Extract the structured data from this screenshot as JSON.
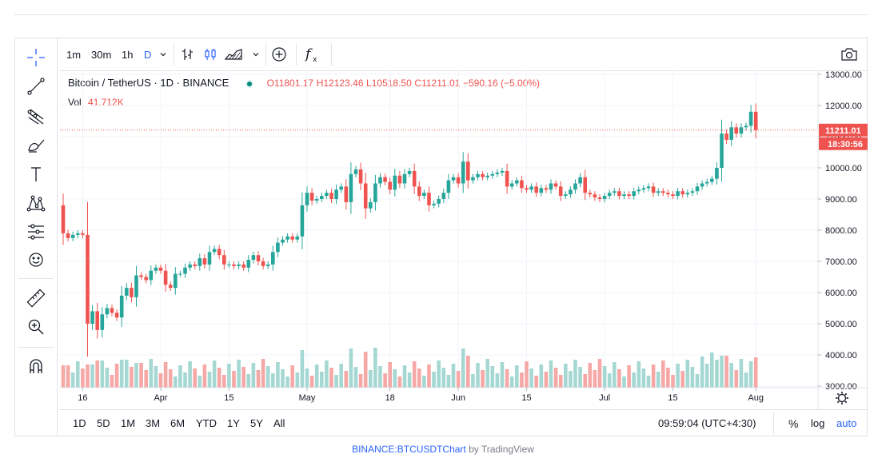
{
  "toolbar": {
    "intervals": [
      "1m",
      "30m",
      "1h",
      "D"
    ],
    "active_interval": "D"
  },
  "left_toolbar": {
    "tools": [
      "crosshair-icon",
      "trend-line-icon",
      "pitchfork-icon",
      "brush-icon",
      "text-icon",
      "pattern-icon",
      "prediction-icon",
      "emoji-icon",
      "ruler-icon",
      "zoom-in-icon",
      "magnet-icon"
    ]
  },
  "legend": {
    "symbol": "Bitcoin / TetherUS · 1D · BINANCE",
    "open": "O11801.17",
    "high": "H12123.46",
    "low": "L10518.50",
    "close": "C11211.01",
    "change": "−590.16 (−5.00%)",
    "vol_label": "Vol",
    "vol_value": "41.712K"
  },
  "price_labels": {
    "last_price": "11211.01",
    "countdown": "18:30:56"
  },
  "bottom_toolbar": {
    "ranges": [
      "1D",
      "5D",
      "1M",
      "3M",
      "6M",
      "YTD",
      "1Y",
      "5Y",
      "All"
    ],
    "time": "09:59:04 (UTC+4:30)",
    "percent": "%",
    "log": "log",
    "auto": "auto"
  },
  "footer": {
    "link": "BINANCE:BTCUSDT",
    "chart": "Chart",
    "by": " by TradingView"
  },
  "colors": {
    "up": "#26a69a",
    "down": "#ef5350",
    "vol_up": "#a6d8d3",
    "vol_down": "#f5a8a6",
    "accent": "#2962ff"
  },
  "chart_data": {
    "type": "candlestick",
    "symbol": "BTCUSDT",
    "ylim": [
      3000,
      13000
    ],
    "yticks": [
      "3000.00",
      "4000.00",
      "5000.00",
      "6000.00",
      "7000.00",
      "8000.00",
      "9000.00",
      "10000.00",
      "11000.00",
      "12000.00",
      "13000.00"
    ],
    "xticks": [
      {
        "label": "16",
        "day": 4
      },
      {
        "label": "Apr",
        "day": 20
      },
      {
        "label": "15",
        "day": 34
      },
      {
        "label": "May",
        "day": 50
      },
      {
        "label": "18",
        "day": 67
      },
      {
        "label": "Jun",
        "day": 81
      },
      {
        "label": "15",
        "day": 95
      },
      {
        "label": "Jul",
        "day": 111
      },
      {
        "label": "15",
        "day": 125
      },
      {
        "label": "Aug",
        "day": 142
      }
    ],
    "closes": [
      7900,
      7750,
      7850,
      7900,
      7850,
      5000,
      5400,
      4800,
      5300,
      5500,
      5350,
      5200,
      5900,
      6150,
      5850,
      6550,
      6500,
      6400,
      6700,
      6800,
      6700,
      6250,
      6150,
      6600,
      6600,
      6800,
      6900,
      6850,
      7100,
      6900,
      7300,
      7400,
      7200,
      6900,
      6900,
      6850,
      6900,
      6800,
      7050,
      7200,
      7000,
      6850,
      6900,
      7300,
      7600,
      7700,
      7800,
      7700,
      7800,
      8800,
      9200,
      8950,
      9000,
      9100,
      9200,
      9000,
      9300,
      9400,
      8900,
      9800,
      9950,
      9500,
      8700,
      8900,
      9500,
      9700,
      9550,
      9300,
      9750,
      9500,
      9800,
      9900,
      9400,
      9100,
      9200,
      8800,
      8850,
      9000,
      9200,
      9600,
      9700,
      9500,
      10200,
      9600,
      9700,
      9800,
      9700,
      9750,
      9800,
      9850,
      9900,
      9400,
      9500,
      9600,
      9350,
      9300,
      9400,
      9200,
      9350,
      9300,
      9500,
      9400,
      9100,
      9150,
      9300,
      9500,
      9700,
      9200,
      9150,
      9050,
      9000,
      9100,
      9200,
      9250,
      9100,
      9150,
      9100,
      9250,
      9300,
      9350,
      9400,
      9200,
      9250,
      9200,
      9150,
      9100,
      9250,
      9150,
      9200,
      9250,
      9400,
      9500,
      9550,
      9650,
      10000,
      11100,
      10900,
      11300,
      11100,
      11300,
      11350,
      11800,
      11211
    ]
  }
}
